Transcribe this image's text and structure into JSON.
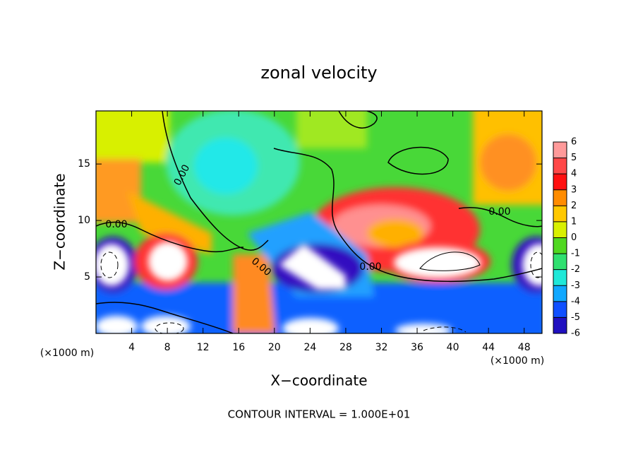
{
  "chart_data": {
    "type": "contour",
    "title": "zonal velocity",
    "xlabel": "X−coordinate",
    "ylabel": "Z−coordinate",
    "x_unit": "(×1000 m)",
    "y_unit": "(×1000 m)",
    "footer": "CONTOUR INTERVAL = 1.000E+01",
    "xlim": [
      0,
      50
    ],
    "ylim": [
      0,
      19.7
    ],
    "xticks": [
      4,
      8,
      12,
      16,
      20,
      24,
      28,
      32,
      36,
      40,
      44,
      48
    ],
    "yticks": [
      5,
      10,
      15
    ],
    "contour_labels": [
      "0.00",
      "0.00",
      "0.00",
      "0.00",
      "0.00"
    ],
    "colorbar": {
      "ticks": [
        6,
        5,
        4,
        3,
        2,
        1,
        0,
        -1,
        -2,
        -3,
        -4,
        -5,
        -6
      ],
      "colors": [
        "#ff9a9a",
        "#ff4848",
        "#ff1010",
        "#ff8c00",
        "#ffc800",
        "#d8f000",
        "#50d820",
        "#30e070",
        "#20e8d8",
        "#10a8ff",
        "#1050ff",
        "#2010c0"
      ]
    }
  }
}
